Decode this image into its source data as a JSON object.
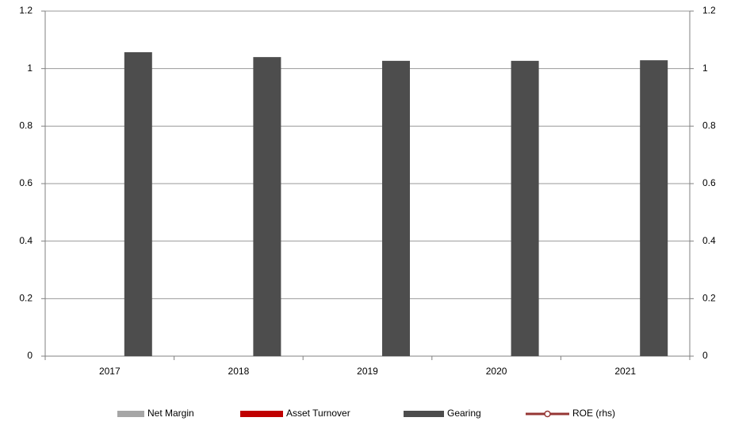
{
  "chart_data": {
    "type": "bar",
    "categories": [
      "2017",
      "2018",
      "2019",
      "2020",
      "2021"
    ],
    "series": [
      {
        "name": "Net Margin",
        "color": "#a6a6a6",
        "values": [
          null,
          null,
          null,
          null,
          null
        ]
      },
      {
        "name": "Asset Turnover",
        "color": "#c00000",
        "values": [
          null,
          null,
          null,
          null,
          null
        ]
      },
      {
        "name": "Gearing",
        "color": "#4d4d4d",
        "values": [
          1.057,
          1.04,
          1.027,
          1.027,
          1.029
        ]
      },
      {
        "name": "ROE (rhs)",
        "color": "#963634",
        "type": "line",
        "axis": "y2",
        "values": [
          null,
          null,
          null,
          null,
          null
        ]
      }
    ],
    "ylim": [
      0,
      1.2
    ],
    "yticks": [
      0,
      0.2,
      0.4,
      0.6,
      0.8,
      1,
      1.2
    ],
    "y2lim": [
      0,
      1.2
    ],
    "y2ticks": [
      0,
      0.2,
      0.4,
      0.6,
      0.8,
      1,
      1.2
    ],
    "grid": true,
    "legend": "bottom"
  }
}
